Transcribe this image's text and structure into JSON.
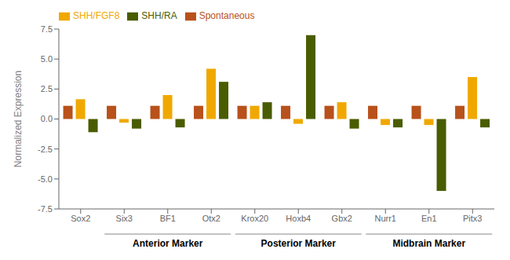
{
  "chart_data": {
    "type": "bar",
    "categories": [
      "Sox2",
      "Six3",
      "BF1",
      "Otx2",
      "Krox20",
      "Hoxb4",
      "Gbx2",
      "Nurr1",
      "En1",
      "Pitx3"
    ],
    "series": [
      {
        "name": "Spontaneous",
        "color": "#B8511B",
        "values": [
          1.1,
          1.1,
          1.1,
          1.1,
          1.1,
          1.1,
          1.1,
          1.1,
          1.1,
          1.1
        ]
      },
      {
        "name": "SHH/FGF8",
        "color": "#F0A800",
        "values": [
          1.65,
          -0.3,
          2.0,
          4.2,
          1.1,
          -0.4,
          1.4,
          -0.5,
          -0.5,
          3.5
        ]
      },
      {
        "name": "SHH/RA",
        "color": "#4A5C00",
        "values": [
          -1.1,
          -0.8,
          -0.7,
          3.1,
          1.4,
          7.0,
          -0.8,
          -0.7,
          -6.0,
          -0.7
        ]
      }
    ],
    "ylabel": "Normalized Expression",
    "ylim": [
      -7.5,
      7.5
    ],
    "yticks": [
      -7.5,
      {
        "value": -5,
        "label": "-5.0"
      },
      -2.5,
      {
        "value": 0,
        "label": "0.0"
      },
      2.5,
      {
        "value": 5,
        "label": "5.0"
      },
      7.5
    ],
    "annotations": [
      {
        "text": "Anterior Marker",
        "categories": [
          "Six3",
          "BF1",
          "Otx2"
        ]
      },
      {
        "text": "Posterior Marker",
        "categories": [
          "Krox20",
          "Hoxb4",
          "Gbx2"
        ]
      },
      {
        "text": "Midbrain Marker",
        "categories": [
          "Nurr1",
          "En1",
          "Pitx3"
        ]
      }
    ],
    "legend": "upper left",
    "grid": false
  }
}
